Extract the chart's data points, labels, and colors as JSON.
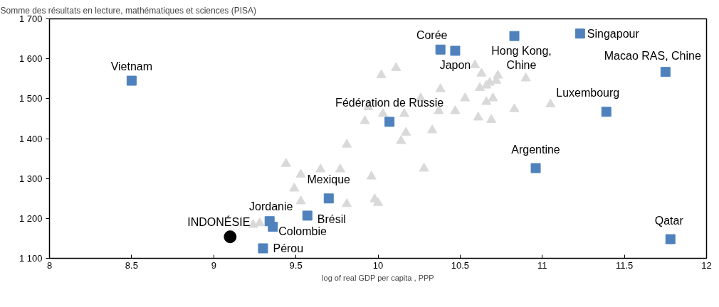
{
  "chart_data": {
    "type": "scatter",
    "ylabel": "Somme des résultats en lecture, mathématiques et sciences (PISA)",
    "xlabel": "log of real GDP per capita , PPP",
    "xlim": [
      8,
      12
    ],
    "xticks": [
      8,
      8.5,
      9,
      9.5,
      10,
      10.5,
      11,
      11.5,
      12
    ],
    "ylim": [
      1100,
      1700
    ],
    "yticks": [
      {
        "value": 1100,
        "label": "1 100"
      },
      {
        "value": 1200,
        "label": "1 200"
      },
      {
        "value": 1300,
        "label": "1 300"
      },
      {
        "value": 1400,
        "label": "1 400"
      },
      {
        "value": 1500,
        "label": "1 500"
      },
      {
        "value": 1600,
        "label": "1 600"
      },
      {
        "value": 1700,
        "label": "1 700"
      }
    ],
    "grid": false,
    "series": [
      {
        "color": "#d9d9d9",
        "marker": "triangle",
        "x": [
          10.02,
          9.94,
          9.92,
          9.81,
          9.44,
          9.53,
          9.65,
          9.77,
          9.96,
          9.49,
          9.53,
          9.81,
          9.98,
          10.0,
          9.24,
          9.28,
          10.11,
          10.59,
          10.63,
          10.73,
          10.68,
          10.66,
          10.62,
          10.72,
          10.9,
          10.38,
          10.53,
          10.7,
          10.66,
          10.83,
          11.05,
          10.26,
          10.37,
          10.47,
          10.03,
          10.16,
          10.61,
          10.69,
          10.33,
          10.17,
          10.14,
          10.28
        ],
        "values": [
          1559,
          1479,
          1444,
          1385,
          1337,
          1310,
          1323,
          1323,
          1305,
          1275,
          1243,
          1236,
          1248,
          1239,
          1184,
          1188,
          1577,
          1584,
          1563,
          1558,
          1540,
          1533,
          1527,
          1545,
          1551,
          1524,
          1501,
          1501,
          1492,
          1474,
          1486,
          1501,
          1469,
          1469,
          1462,
          1462,
          1453,
          1447,
          1421,
          1415,
          1394,
          1325
        ]
      },
      {
        "color": "#4f81bd",
        "marker": "square",
        "x": [
          8.5,
          10.38,
          10.47,
          10.83,
          11.23,
          11.75,
          11.39,
          10.07,
          10.96,
          9.7,
          9.57,
          9.34,
          9.36,
          9.3,
          11.78
        ],
        "values": [
          1545,
          1623,
          1620,
          1657,
          1663,
          1567,
          1467,
          1442,
          1326,
          1250,
          1207,
          1193,
          1179,
          1125,
          1148
        ]
      },
      {
        "color": "#000000",
        "marker": "circle",
        "x": [
          9.1
        ],
        "values": [
          1154
        ]
      }
    ],
    "annotations": [
      {
        "text": "Vietnam",
        "x": 8.5,
        "y": 1545
      },
      {
        "text": "Corée",
        "x": 10.38,
        "y": 1623
      },
      {
        "text": "Japon",
        "x": 10.47,
        "y": 1620
      },
      {
        "text": "Hong Kong,\nChine",
        "x": 10.83,
        "y": 1657
      },
      {
        "text": "Singapour",
        "x": 11.23,
        "y": 1663
      },
      {
        "text": "Macao RAS, Chine",
        "x": 11.75,
        "y": 1567
      },
      {
        "text": "Luxembourg",
        "x": 11.39,
        "y": 1467
      },
      {
        "text": "Fédération de Russie",
        "x": 10.07,
        "y": 1442
      },
      {
        "text": "Argentine",
        "x": 10.96,
        "y": 1326
      },
      {
        "text": "Mexique",
        "x": 9.7,
        "y": 1250
      },
      {
        "text": "Brésil",
        "x": 9.57,
        "y": 1207
      },
      {
        "text": "Jordanie",
        "x": 9.34,
        "y": 1193
      },
      {
        "text": "Colombie",
        "x": 9.36,
        "y": 1179
      },
      {
        "text": "Pérou",
        "x": 9.3,
        "y": 1125
      },
      {
        "text": "Qatar",
        "x": 11.78,
        "y": 1148
      },
      {
        "text": "INDONÉSIE",
        "x": 9.1,
        "y": 1154
      }
    ]
  }
}
